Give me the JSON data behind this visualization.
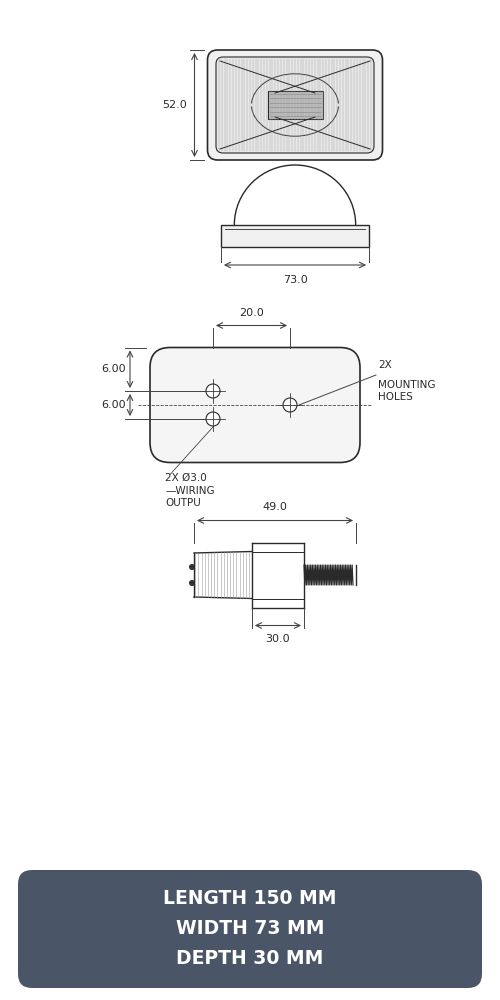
{
  "bg_color": "#ffffff",
  "line_color": "#2a2a2a",
  "dim_color": "#444444",
  "text_color": "#2a2a2a",
  "footer_bg": "#4a5568",
  "footer_text_color": "#ffffff",
  "footer_lines": [
    "LENGTH 150 MM",
    "WIDTH 73 MM",
    "DEPTH 30 MM"
  ],
  "dim_52": "52.0",
  "dim_73": "73.0",
  "dim_20": "20.0",
  "dim_6a": "6.00",
  "dim_6b": "6.00",
  "dim_49": "49.0",
  "dim_30": "30.0",
  "label_mounting_1": "2X",
  "label_mounting_2": "MOUNTING",
  "label_mounting_3": "HOLES",
  "label_wiring_1": "2X Ø3.0",
  "label_wiring_2": "—WIRING",
  "label_wiring_3": "OUTPU"
}
